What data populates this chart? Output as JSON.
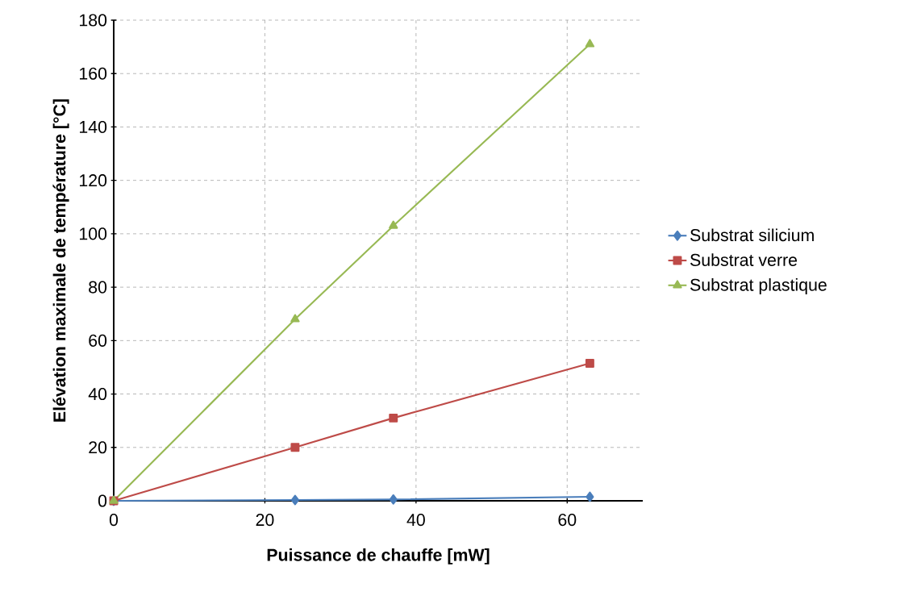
{
  "chart_data": {
    "type": "line",
    "xlabel": "Puissance de chauffe [mW]",
    "ylabel": "Elévation maximale de température [°C]",
    "x": [
      0,
      24,
      37,
      63
    ],
    "series": [
      {
        "name": "Substrat silicium",
        "color": "#4a7ebb",
        "marker": "diamond",
        "values": [
          0,
          0.3,
          0.5,
          1.5
        ]
      },
      {
        "name": "Substrat verre",
        "color": "#be4b48",
        "marker": "square",
        "values": [
          0,
          20,
          31,
          51.5
        ]
      },
      {
        "name": "Substrat plastique",
        "color": "#98b954",
        "marker": "triangle",
        "values": [
          0,
          68,
          103,
          171
        ]
      }
    ],
    "xlim": [
      0,
      70
    ],
    "xticks": [
      0,
      20,
      40,
      60
    ],
    "ylim": [
      0,
      180
    ],
    "yticks": [
      0,
      20,
      40,
      60,
      80,
      100,
      120,
      140,
      160,
      180
    ],
    "grid": true,
    "legend": "right",
    "line_style": "solid"
  }
}
